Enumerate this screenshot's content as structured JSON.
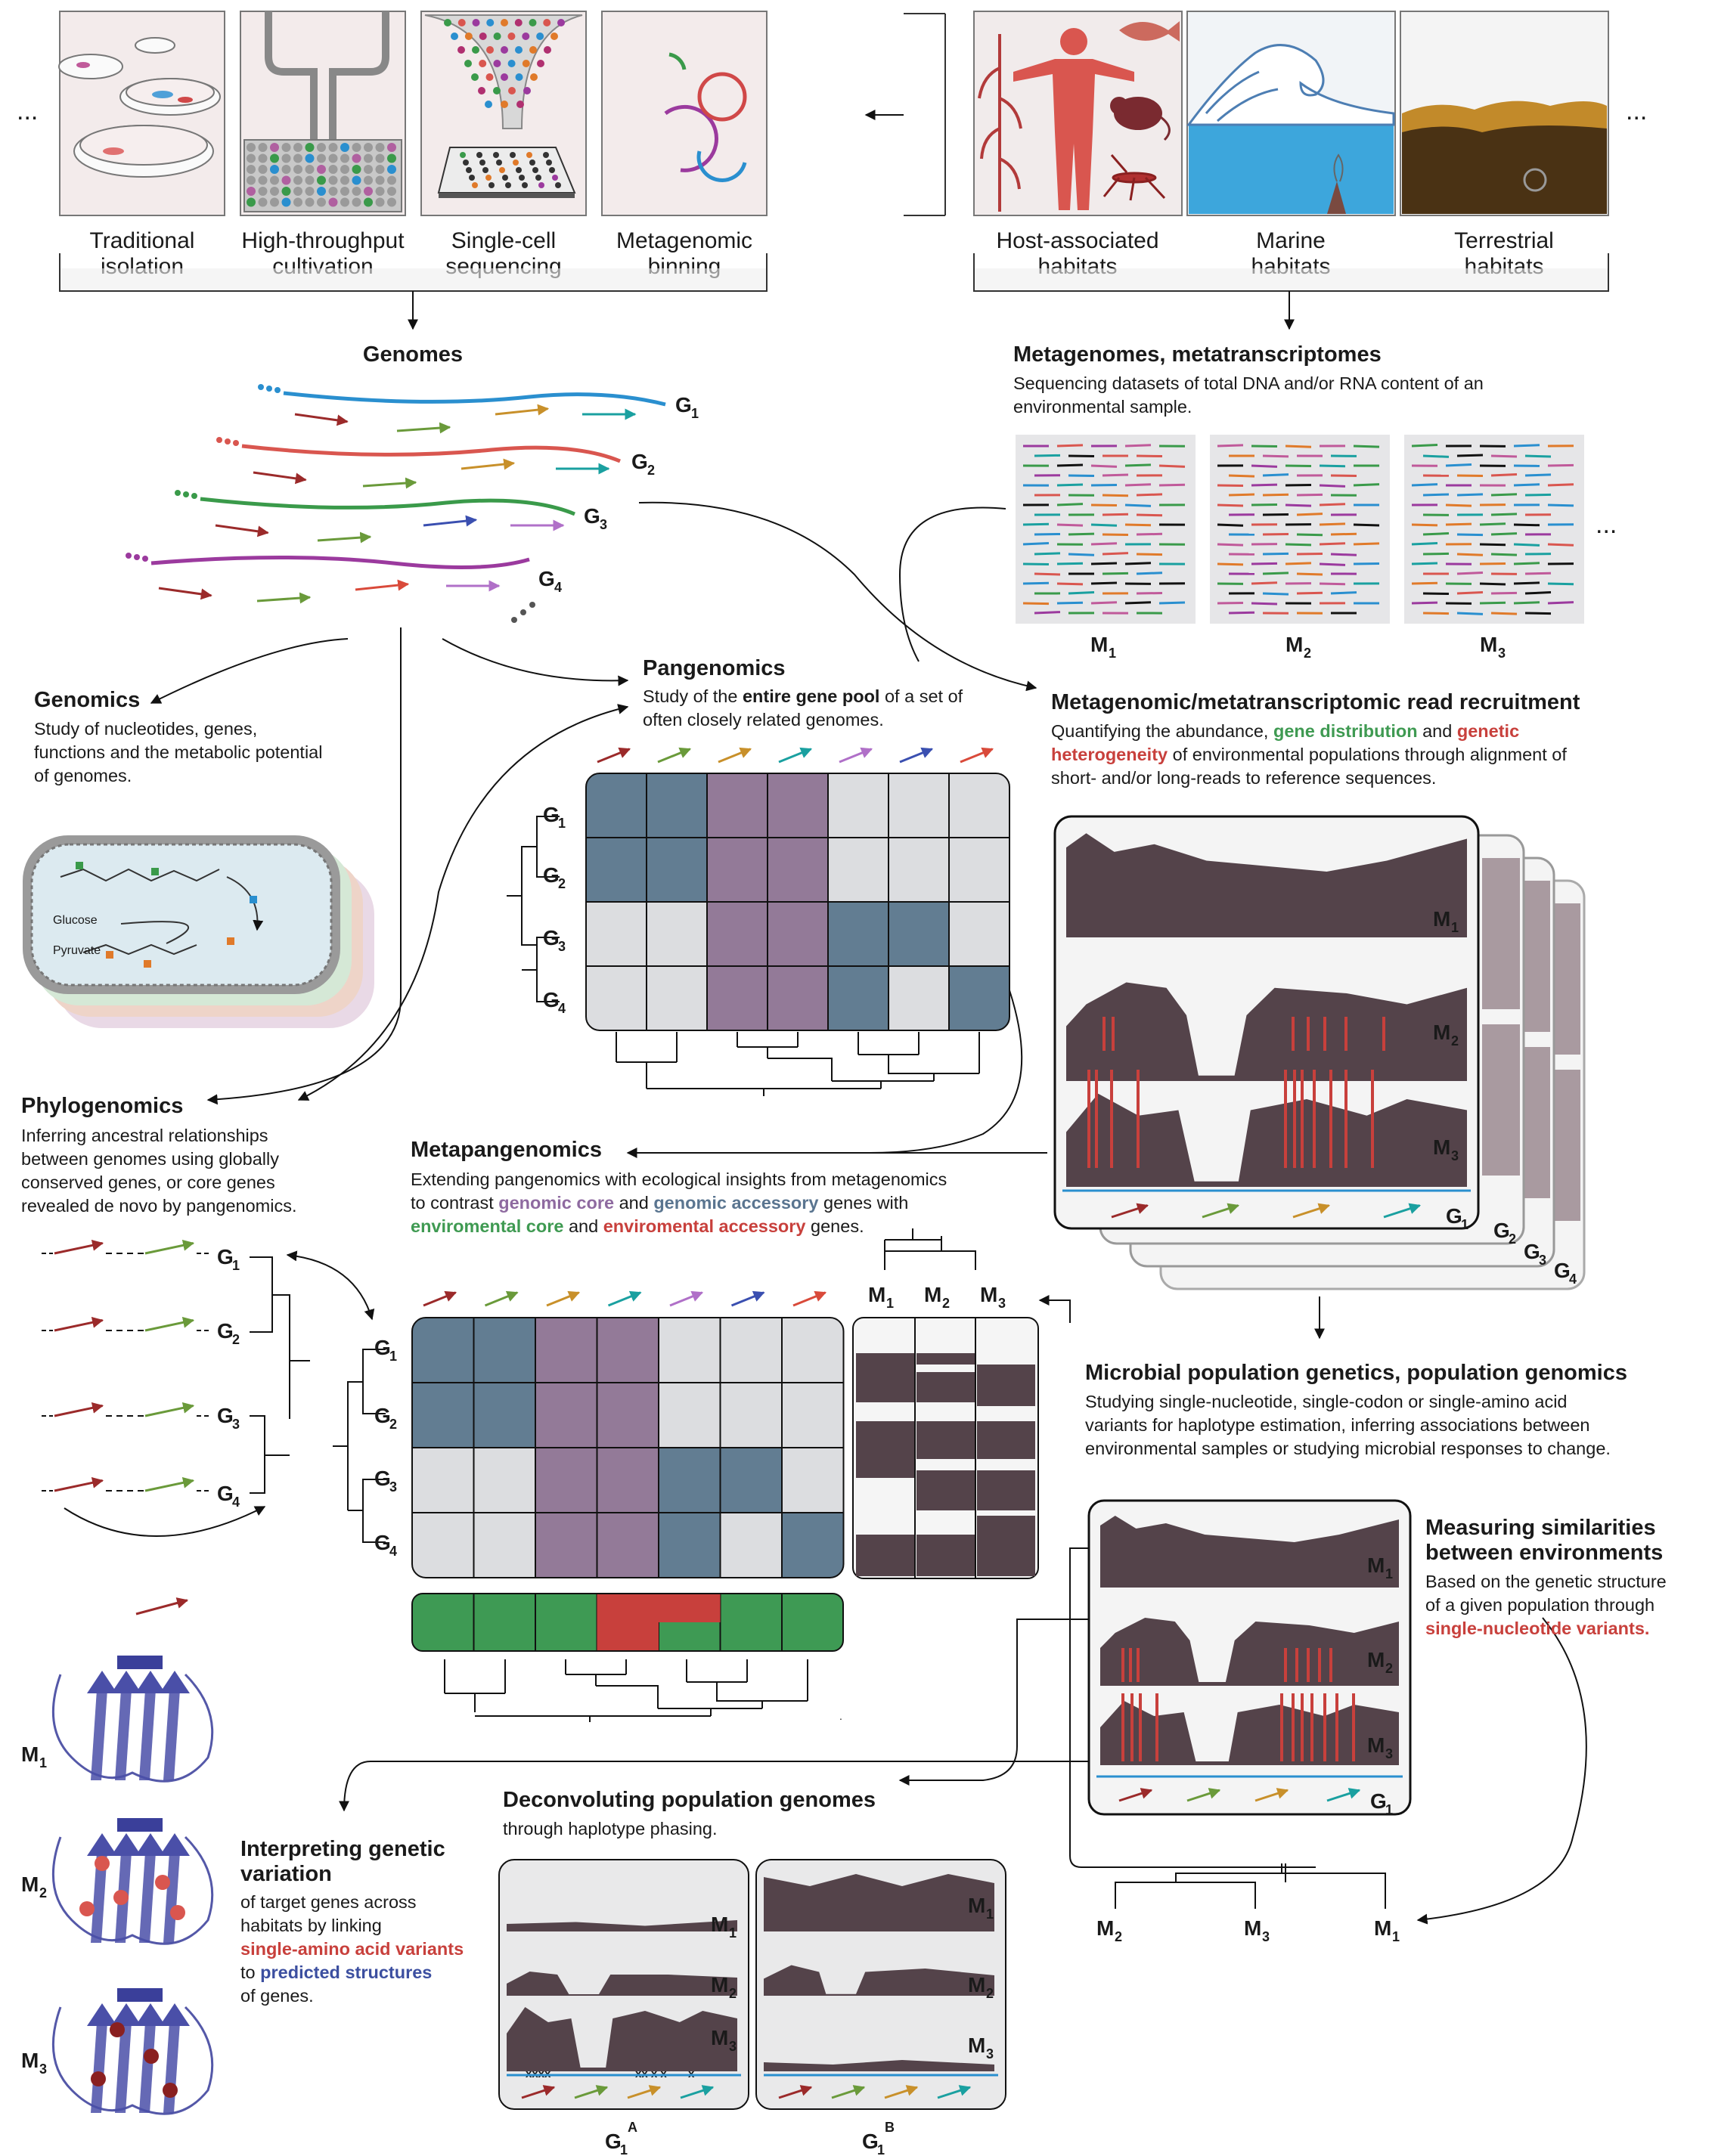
{
  "colors": {
    "coverage": "#54434a",
    "core": "#627d92",
    "purple": "#937a98",
    "light": "#dcdde0",
    "green": "#3e9a54",
    "red": "#c8403c",
    "reference": "#2a8fcf",
    "protein": "#5458a8"
  },
  "top_left": {
    "ellipsis": "...",
    "panels": [
      {
        "line1": "Traditional",
        "line2": "isolation"
      },
      {
        "line1": "High-throughput",
        "line2": "cultivation"
      },
      {
        "line1": "Single-cell",
        "line2": "sequencing"
      },
      {
        "line1": "Metagenomic",
        "line2": "binning"
      }
    ]
  },
  "top_right": {
    "ellipsis": "...",
    "panels": [
      {
        "line1": "Host-associated",
        "line2": "habitats"
      },
      {
        "line1": "Marine",
        "line2": "habitats"
      },
      {
        "line1": "Terrestrial",
        "line2": "habitats"
      }
    ]
  },
  "genomes": {
    "title": "Genomes",
    "labels": [
      "G",
      "G",
      "G",
      "G"
    ],
    "subs": [
      "1",
      "2",
      "3",
      "4"
    ]
  },
  "metagenomes": {
    "title": "Metagenomes, metatranscriptomes",
    "desc1": "Sequencing datasets of total DNA and/or RNA content of an",
    "desc2": "environmental sample.",
    "labels": [
      "M",
      "M",
      "M"
    ],
    "subs": [
      "1",
      "2",
      "3"
    ],
    "ellipsis": "..."
  },
  "genomics": {
    "title": "Genomics",
    "lines": [
      "Study of nucleotides, genes,",
      "functions and the metabolic potential",
      "of genomes."
    ],
    "glucose": "Glucose",
    "pyruvate": "Pyruvate"
  },
  "pangenomics": {
    "title": "Pangenomics",
    "l1a": "Study of the ",
    "l1b": "entire gene pool",
    "l1c": " of a set of",
    "l2": "often closely related genomes."
  },
  "read_recruitment": {
    "title": "Metagenomic/metatranscriptomic read recruitment",
    "l1a": "Quantifying the abundance, ",
    "l1b": "gene distribution",
    "l1c": " and ",
    "l1d": "genetic",
    "l2a": "heterogeneity",
    "l2b": " of environmental populations through alignment of",
    "l3": "short- and/or long-reads to reference sequences.",
    "stack_labels": [
      "G",
      "G",
      "G",
      "G"
    ],
    "stack_subs": [
      "1",
      "2",
      "3",
      "4"
    ]
  },
  "phylogenomics": {
    "title": "Phylogenomics",
    "lines": [
      "Inferring ancestral relationships",
      "between genomes using globally",
      "conserved genes, or core genes",
      "revealed de novo by pangenomics."
    ]
  },
  "metapangenomics": {
    "title": "Metapangenomics",
    "l1": "Extending pangenomics with ecological insights from metagenomics",
    "l2a": "to contrast ",
    "l2b": "genomic core",
    "l2c": " and ",
    "l2d": "genomic accessory",
    "l2e": " genes with",
    "l3a": "enviromental core",
    "l3b": " and ",
    "l3c": "enviromental accessory",
    "l3d": " genes."
  },
  "popgen": {
    "title": "Microbial population genetics, population genomics",
    "lines": [
      "Studying single-nucleotide, single-codon or single-amino acid",
      "variants for haplotype estimation, inferring associations between",
      "environmental samples or studying microbial responses to change."
    ]
  },
  "similarity": {
    "title1": "Measuring similarities",
    "title2": "between environments",
    "l1": "Based on the genetic structure",
    "l2": "of a given population through",
    "l3": "single-nucleotide variants."
  },
  "deconvolution": {
    "title": "Deconvoluting population genomes",
    "desc": "through haplotype phasing.",
    "a_label": "G",
    "a_sub": "1",
    "a_sup": "A",
    "b_label": "G",
    "b_sub": "1",
    "b_sup": "B",
    "snv_marks_a": "xxxx",
    "snv_marks_b": "xx x x",
    "snv_marks_c": "x"
  },
  "interpreting": {
    "title1": "Interpreting genetic",
    "title2": "variation",
    "l1": "of target genes across",
    "l2": "habitats by linking",
    "l3": "single-amino acid variants",
    "l4a": "to ",
    "l4b": "predicted structures",
    "l5": "of genes."
  },
  "labels": {
    "G": "G",
    "M": "M",
    "one": "1",
    "two": "2",
    "three": "3",
    "four": "4"
  }
}
